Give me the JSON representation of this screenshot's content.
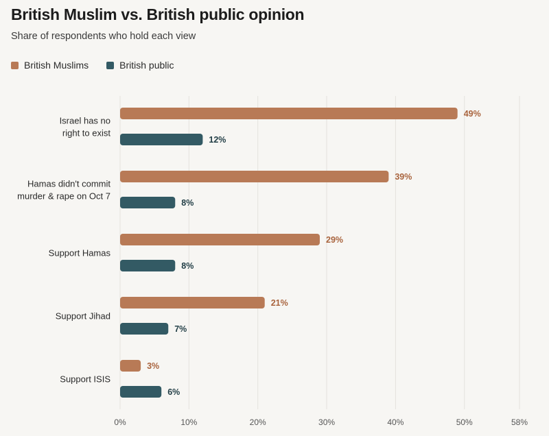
{
  "title": "British Muslim vs. British public opinion",
  "subtitle": "Share of respondents who hold each view",
  "colors": {
    "muslims": "#b87a56",
    "public": "#335a64",
    "muslims_label": "#a9643e",
    "public_label": "#233f47",
    "grid": "#e4e2dd",
    "axis_text": "#555555",
    "category_text": "#2a2a2a"
  },
  "chart_data": {
    "type": "bar",
    "orientation": "horizontal",
    "categories": [
      [
        "Israel has no",
        "right to exist"
      ],
      [
        "Hamas didn't commit",
        "murder & rape on Oct 7"
      ],
      [
        "Support Hamas"
      ],
      [
        "Support Jihad"
      ],
      [
        "Support ISIS"
      ]
    ],
    "series": [
      {
        "name": "British Muslims",
        "values": [
          49,
          39,
          29,
          21,
          3
        ],
        "labels": [
          "49%",
          "39%",
          "29%",
          "21%",
          "3%"
        ]
      },
      {
        "name": "British public",
        "values": [
          12,
          8,
          8,
          7,
          6
        ],
        "labels": [
          "12%",
          "8%",
          "8%",
          "7%",
          "6%"
        ]
      }
    ],
    "xlim": [
      0,
      58
    ],
    "ticks": [
      0,
      10,
      20,
      30,
      40,
      50,
      58
    ],
    "tick_labels": [
      "0%",
      "10%",
      "20%",
      "30%",
      "40%",
      "50%",
      "58%"
    ],
    "grid": true,
    "legend_position": "top-left"
  }
}
